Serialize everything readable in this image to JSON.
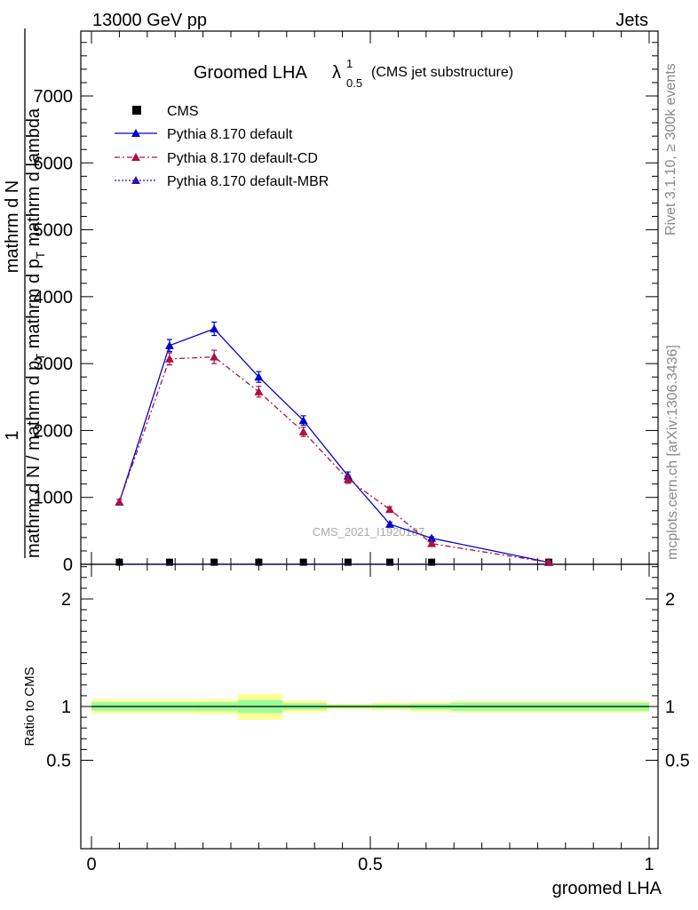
{
  "header": {
    "left": "13000 GeV pp",
    "right": "Jets"
  },
  "title": {
    "main": "Groomed LHA",
    "lambda": "λ",
    "sup": "1",
    "sub": "0.5",
    "note": "(CMS jet substructure)"
  },
  "side_labels": {
    "rivet": "Rivet 3.1.10, ≥ 300k events",
    "mcplots": "mcplots.cern.ch [arXiv:1306.3436]"
  },
  "watermark": "CMS_2021_I1920187",
  "y_label_top": {
    "one": "1",
    "num": "mathrm d N",
    "denom1": "mathrm d N / mathrm d p",
    "denom_sub1": "T",
    "denom2": " mathrm d p",
    "denom_sub2": "T",
    "denom3": " mathrm d lambda"
  },
  "y_label_ratio": "Ratio to CMS",
  "x_label": "groomed LHA",
  "legend": [
    {
      "label": "CMS",
      "marker": "square",
      "color": "#000000",
      "line": "none"
    },
    {
      "label": "Pythia 8.170 default",
      "marker": "triangle",
      "color": "#0000cc",
      "line": "solid"
    },
    {
      "label": "Pythia 8.170 default-CD",
      "marker": "triangle",
      "color": "#aa1144",
      "line": "dashdot"
    },
    {
      "label": "Pythia 8.170 default-MBR",
      "marker": "triangle",
      "color": "#3311aa",
      "line": "dotted"
    }
  ],
  "chart_data": [
    {
      "type": "line",
      "panel": "main",
      "xlim": [
        -0.02,
        1.02
      ],
      "ylim": [
        0,
        8000
      ],
      "yticks": [
        0,
        1000,
        2000,
        3000,
        4000,
        5000,
        6000,
        7000
      ],
      "ytick_labels": [
        "0",
        "1000",
        "2000",
        "3000",
        "4000",
        "5000",
        "6000",
        "7000"
      ],
      "series": [
        {
          "name": "CMS",
          "x": [
            0.05,
            0.14,
            0.22,
            0.3,
            0.38,
            0.46,
            0.535,
            0.61,
            0.82
          ],
          "y": [
            5,
            5,
            5,
            5,
            5,
            5,
            5,
            5,
            5
          ],
          "color": "#000000"
        },
        {
          "name": "Pythia 8.170 default",
          "x": [
            0.05,
            0.14,
            0.22,
            0.3,
            0.38,
            0.46,
            0.535,
            0.61,
            0.82
          ],
          "y": [
            930,
            3270,
            3520,
            2800,
            2150,
            1320,
            600,
            390,
            30
          ],
          "yerr": [
            40,
            90,
            100,
            80,
            70,
            60,
            30,
            20,
            5
          ],
          "color": "#0000cc"
        },
        {
          "name": "Pythia 8.170 default-CD",
          "x": [
            0.05,
            0.14,
            0.22,
            0.3,
            0.38,
            0.46,
            0.535,
            0.61,
            0.82
          ],
          "y": [
            930,
            3070,
            3100,
            2580,
            1980,
            1270,
            820,
            310,
            30
          ],
          "yerr": [
            40,
            90,
            100,
            80,
            70,
            60,
            40,
            20,
            5
          ],
          "color": "#aa1144"
        },
        {
          "name": "Pythia 8.170 default-MBR",
          "x": [
            0.05,
            0.14,
            0.22,
            0.3,
            0.38,
            0.46,
            0.535,
            0.61,
            0.82
          ],
          "y": [
            5,
            5,
            5,
            5,
            5,
            5,
            5,
            5,
            5
          ],
          "color": "#3311aa"
        }
      ]
    },
    {
      "type": "area",
      "panel": "ratio",
      "xlim": [
        -0.02,
        1.02
      ],
      "ylim": [
        0.42,
        2.4
      ],
      "yticks": [
        0.5,
        1,
        2
      ],
      "ytick_labels": [
        "0.5",
        "1",
        "2"
      ],
      "xticks": [
        0,
        0.5,
        1
      ],
      "xtick_labels": [
        "0",
        "0.5",
        "1"
      ],
      "bin_edges": [
        0,
        0.1825,
        0.2625,
        0.3425,
        0.4225,
        0.5025,
        0.5725,
        0.645,
        1.0
      ],
      "band_inner": {
        "low": [
          0.96,
          0.96,
          0.94,
          0.97,
          0.985,
          0.98,
          0.97,
          0.96,
          0.89
        ],
        "high": [
          1.04,
          1.04,
          1.06,
          1.03,
          1.015,
          1.02,
          1.025,
          1.035,
          1.1
        ]
      },
      "band_outer": {
        "low": [
          0.935,
          0.93,
          0.875,
          0.945,
          0.975,
          0.965,
          0.95,
          0.945,
          0.775
        ],
        "high": [
          1.065,
          1.065,
          1.12,
          1.055,
          1.025,
          1.035,
          1.04,
          1.05,
          1.19
        ]
      },
      "reference": 1.0,
      "colors": {
        "inner": "#99ff99",
        "outer": "#ffff99"
      }
    }
  ]
}
